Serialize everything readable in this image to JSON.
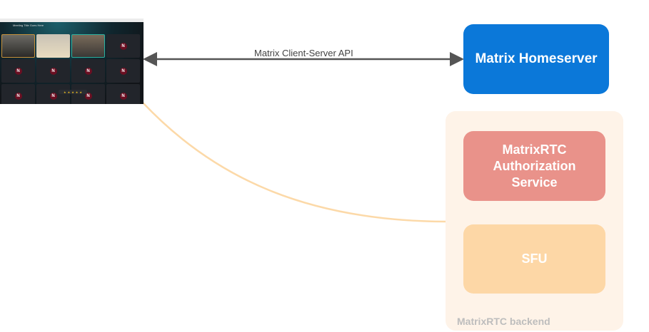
{
  "client_screenshot": {
    "meeting_title": "Meeting Title Goes Here",
    "avatar_initial": "N"
  },
  "connections": {
    "client_server_api": "Matrix Client-Server API"
  },
  "nodes": {
    "homeserver": "Matrix Homeserver",
    "auth_service": "MatrixRTC Authorization Service",
    "sfu": "SFU",
    "backend_group": "MatrixRTC backend"
  },
  "colors": {
    "homeserver": "#0b78d9",
    "auth_service": "#e9928a",
    "sfu": "#fdd7a6",
    "backend_group": "#fef3e8",
    "rtc_link": "#fcd9a8",
    "api_arrow": "#555555"
  }
}
